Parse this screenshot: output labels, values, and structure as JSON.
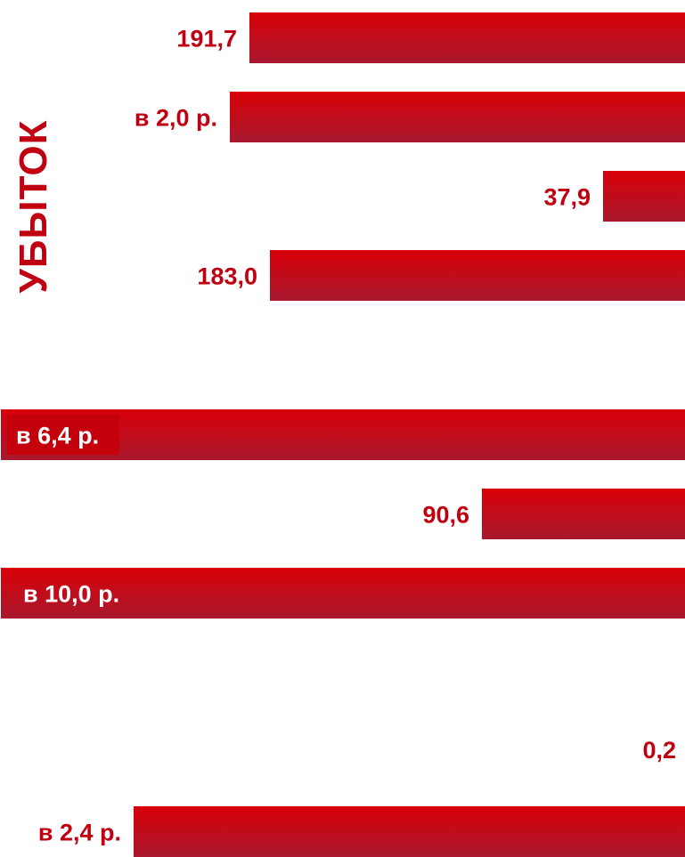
{
  "chart_data": {
    "type": "bar",
    "orientation": "horizontal",
    "side_label": "УБЫТОК",
    "grid": false,
    "legend": "none",
    "colors": {
      "bar_top": "#d90008",
      "bar_bottom": "#a8182e",
      "label": "#c00010",
      "label_inside": "#ffffff",
      "label_inside_box": "#c4000c"
    },
    "bars": [
      {
        "label": "191,7"
      },
      {
        "label": "в 2,0 р."
      },
      {
        "label": "37,9"
      },
      {
        "label": "183,0"
      },
      {
        "label": "в 6,4 р."
      },
      {
        "label": "90,6"
      },
      {
        "label": "в 10,0 р."
      },
      {
        "label": "0,2"
      },
      {
        "label": "в 2,4 р."
      }
    ]
  }
}
